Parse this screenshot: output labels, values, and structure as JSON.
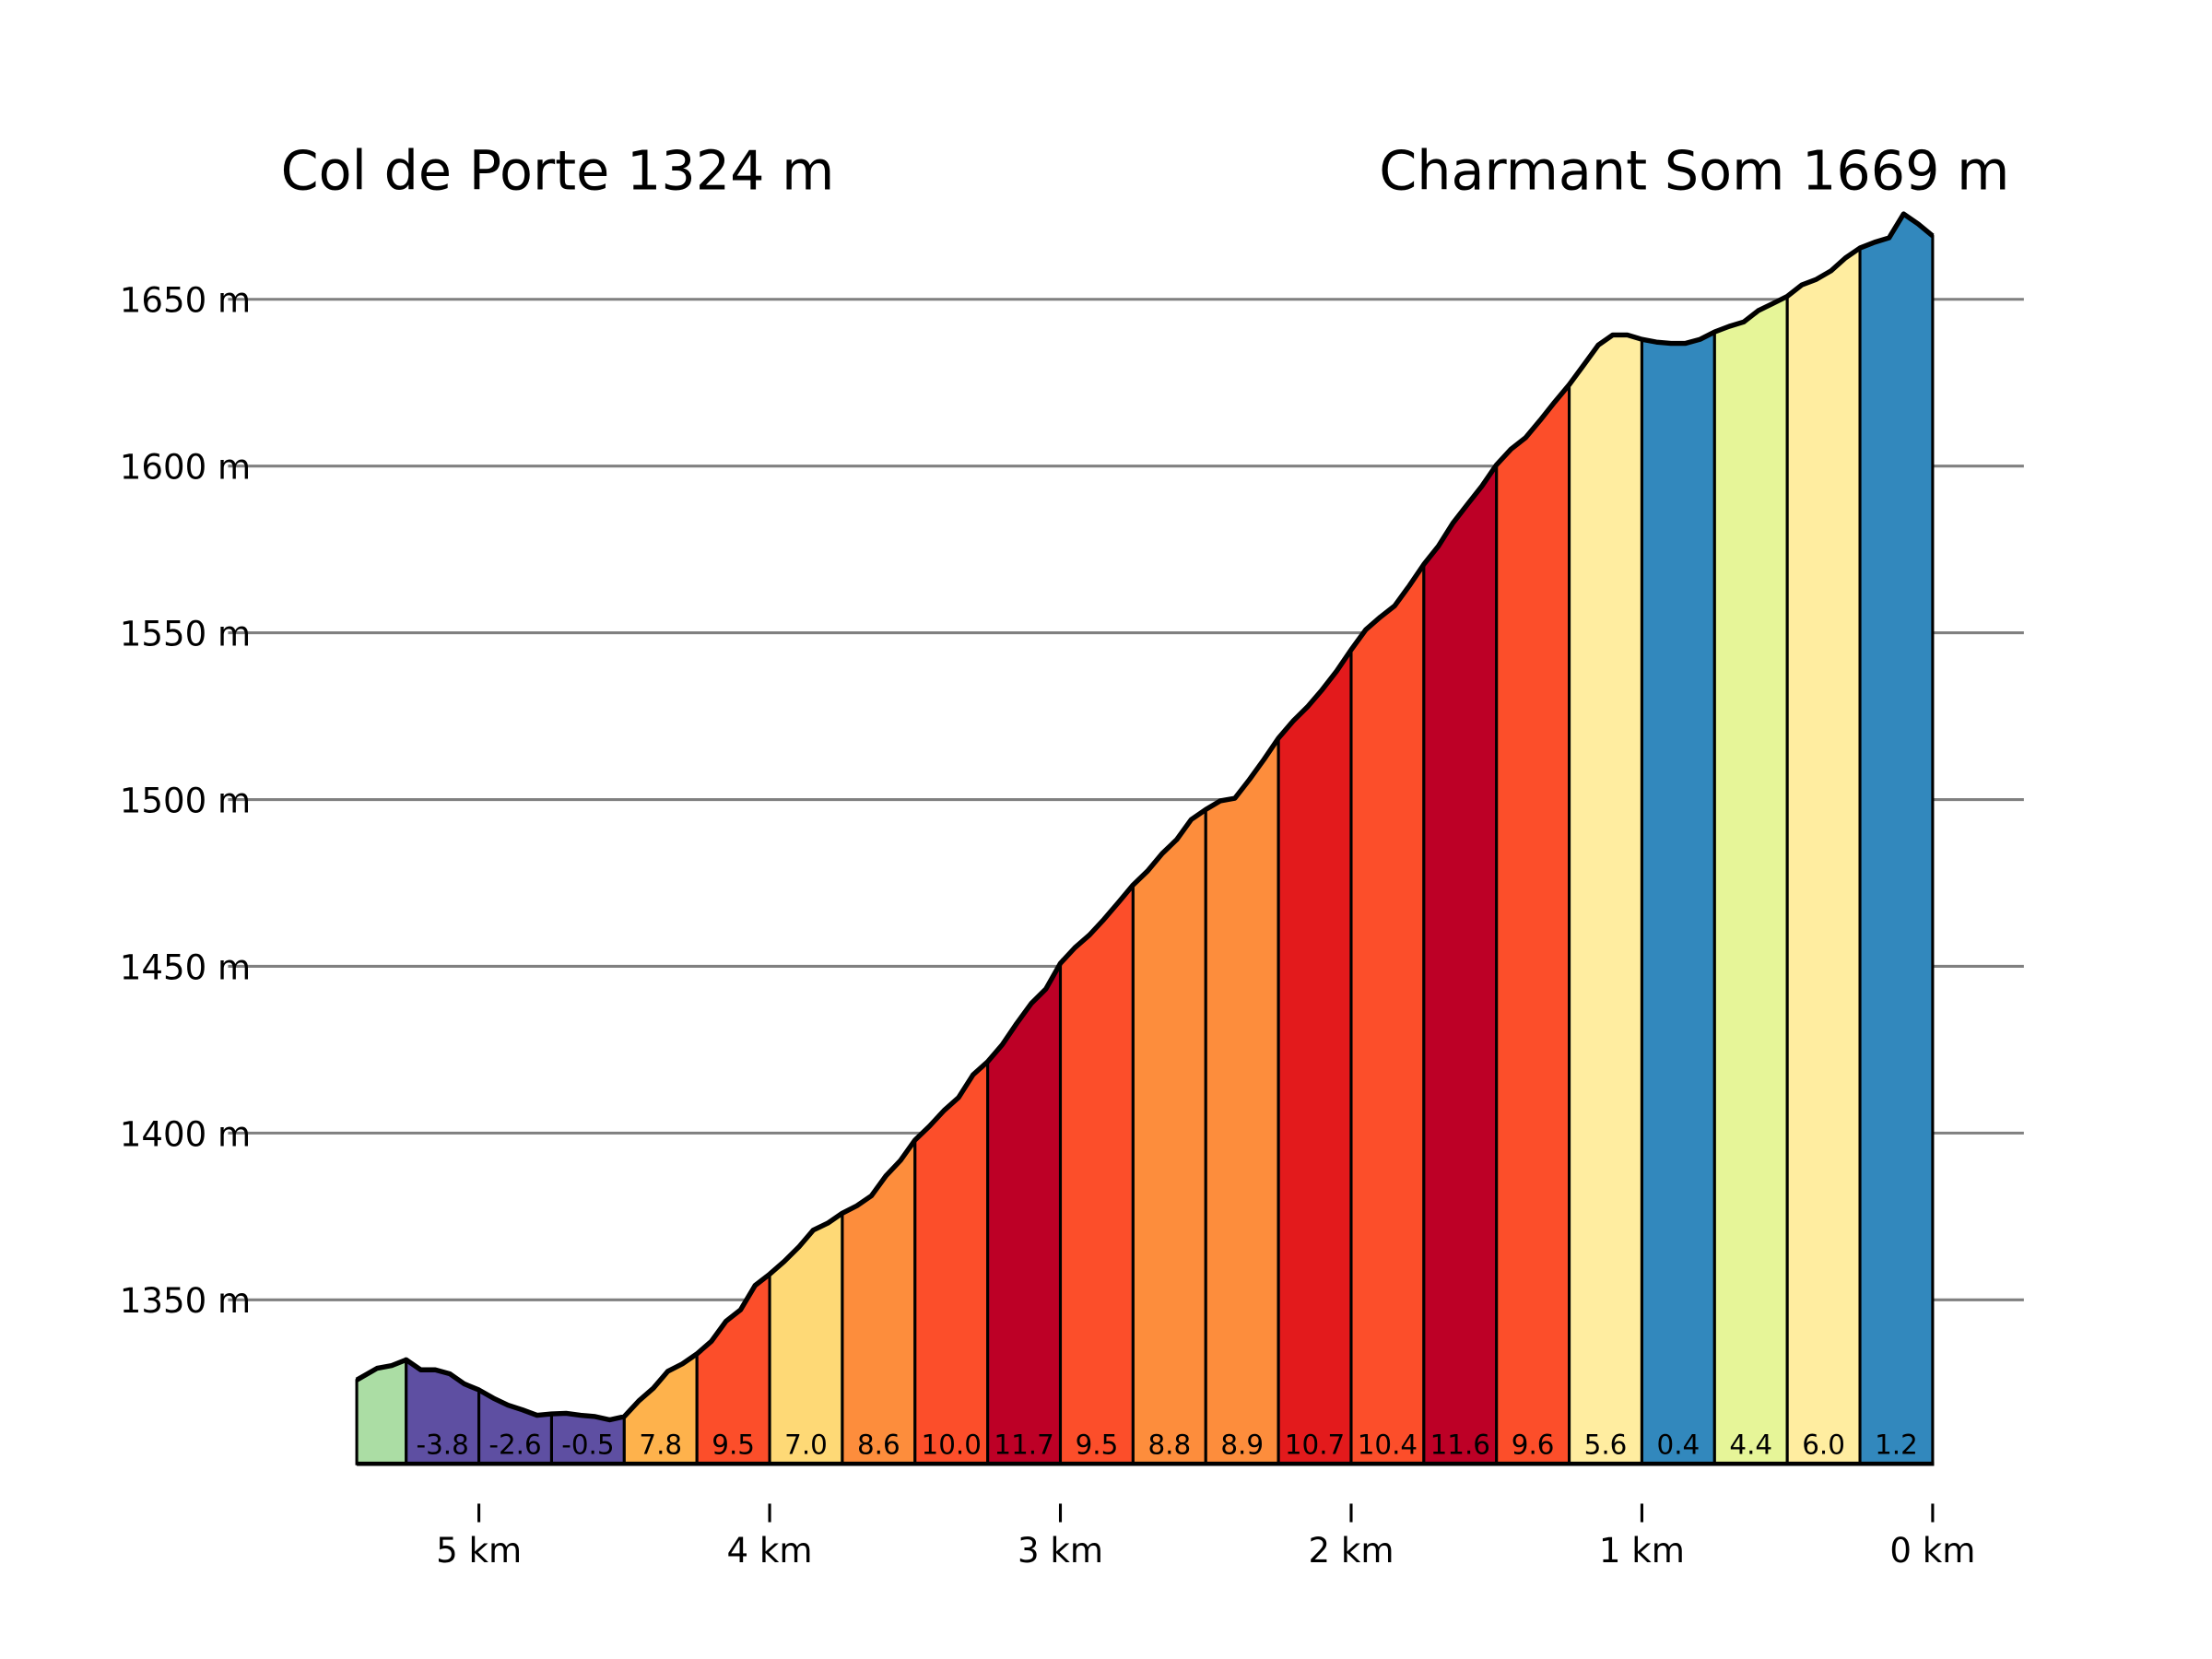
{
  "chart_data": {
    "type": "area",
    "title_left": "Col de Porte 1324 m",
    "title_right": "Charmant Som 1669 m",
    "xlabel": "",
    "ylabel": "",
    "xlim": [
      5.42,
      0
    ],
    "ylim": [
      1301,
      1680
    ],
    "y_ticks": [
      1350,
      1400,
      1450,
      1500,
      1550,
      1600,
      1650
    ],
    "y_tick_labels": [
      "1350 m",
      "1400 m",
      "1450 m",
      "1500 m",
      "1550 m",
      "1600 m",
      "1650 m"
    ],
    "x_ticks": [
      5,
      4,
      3,
      2,
      1,
      0
    ],
    "x_tick_labels": [
      "5 km",
      "4 km",
      "3 km",
      "2 km",
      "1 km",
      "0 km"
    ],
    "grid": "horizontal",
    "profile": {
      "km": [
        5.42,
        5.35,
        5.3,
        5.25,
        5.2,
        5.15,
        5.1,
        5.05,
        5.0,
        4.95,
        4.9,
        4.85,
        4.8,
        4.75,
        4.7,
        4.65,
        4.6,
        4.55,
        4.5,
        4.45,
        4.4,
        4.35,
        4.3,
        4.25,
        4.2,
        4.15,
        4.1,
        4.05,
        4.0,
        3.95,
        3.9,
        3.85,
        3.8,
        3.75,
        3.7,
        3.65,
        3.6,
        3.55,
        3.5,
        3.45,
        3.4,
        3.35,
        3.3,
        3.25,
        3.2,
        3.15,
        3.1,
        3.05,
        3.0,
        2.95,
        2.9,
        2.85,
        2.8,
        2.75,
        2.7,
        2.65,
        2.6,
        2.55,
        2.5,
        2.45,
        2.4,
        2.35,
        2.3,
        2.25,
        2.2,
        2.15,
        2.1,
        2.05,
        2.0,
        1.95,
        1.9,
        1.85,
        1.8,
        1.75,
        1.7,
        1.65,
        1.6,
        1.55,
        1.5,
        1.45,
        1.4,
        1.35,
        1.3,
        1.25,
        1.2,
        1.15,
        1.1,
        1.05,
        1.0,
        0.95,
        0.9,
        0.85,
        0.8,
        0.75,
        0.7,
        0.65,
        0.6,
        0.55,
        0.5,
        0.45,
        0.4,
        0.35,
        0.3,
        0.25,
        0.2,
        0.15,
        0.1,
        0.05,
        0.0
      ],
      "elevation": [
        1326,
        1329.5,
        1330.3,
        1332,
        1329,
        1329,
        1327.8,
        1324.8,
        1323,
        1320.5,
        1318.4,
        1317,
        1315.4,
        1315.8,
        1316,
        1315.4,
        1315,
        1314,
        1315,
        1319.7,
        1323.5,
        1328.6,
        1330.8,
        1333.8,
        1337.6,
        1343.6,
        1347,
        1354.3,
        1357.7,
        1361.5,
        1365.8,
        1370.9,
        1373,
        1376,
        1378.2,
        1381.2,
        1387.2,
        1391.8,
        1397.9,
        1402.1,
        1406.8,
        1410.7,
        1417.5,
        1421.4,
        1426.5,
        1432.9,
        1438.9,
        1443.2,
        1450.9,
        1455.6,
        1459.4,
        1464.1,
        1469.2,
        1474.4,
        1478.6,
        1483.8,
        1488,
        1494,
        1497,
        1499.6,
        1500.4,
        1506,
        1512,
        1518.4,
        1523.5,
        1527.8,
        1532.9,
        1538.5,
        1544.9,
        1550.9,
        1554.7,
        1558.1,
        1564.1,
        1570.5,
        1576,
        1582.9,
        1588.5,
        1594,
        1600.4,
        1605.1,
        1608.5,
        1613.7,
        1619.2,
        1624.4,
        1630.3,
        1636.3,
        1639.3,
        1639.3,
        1638,
        1637.2,
        1636.8,
        1636.8,
        1638,
        1640.2,
        1641.9,
        1643.2,
        1646.6,
        1648.7,
        1650.9,
        1654.3,
        1656,
        1658.5,
        1662.4,
        1665.4,
        1667.1,
        1668.4,
        1675.6,
        1672.6,
        1669
      ]
    },
    "segments": [
      {
        "from": 5.42,
        "to": 5.25,
        "label": "",
        "color": "#abdda4"
      },
      {
        "from": 5.25,
        "to": 5.0,
        "label": "-3.8",
        "color": "#5e4fa2"
      },
      {
        "from": 5.0,
        "to": 4.75,
        "label": "-2.6",
        "color": "#5e4fa2"
      },
      {
        "from": 4.75,
        "to": 4.5,
        "label": "-0.5",
        "color": "#5e4fa2"
      },
      {
        "from": 4.5,
        "to": 4.25,
        "label": "7.8",
        "color": "#feb24c"
      },
      {
        "from": 4.25,
        "to": 4.0,
        "label": "9.5",
        "color": "#fc4e2a"
      },
      {
        "from": 4.0,
        "to": 3.75,
        "label": "7.0",
        "color": "#fed976"
      },
      {
        "from": 3.75,
        "to": 3.5,
        "label": "8.6",
        "color": "#fd8d3c"
      },
      {
        "from": 3.5,
        "to": 3.25,
        "label": "10.0",
        "color": "#fc4e2a"
      },
      {
        "from": 3.25,
        "to": 3.0,
        "label": "11.7",
        "color": "#bd0026"
      },
      {
        "from": 3.0,
        "to": 2.75,
        "label": "9.5",
        "color": "#fc4e2a"
      },
      {
        "from": 2.75,
        "to": 2.5,
        "label": "8.8",
        "color": "#fd8d3c"
      },
      {
        "from": 2.5,
        "to": 2.25,
        "label": "8.9",
        "color": "#fd8d3c"
      },
      {
        "from": 2.25,
        "to": 2.0,
        "label": "10.7",
        "color": "#e31a1c"
      },
      {
        "from": 2.0,
        "to": 1.75,
        "label": "10.4",
        "color": "#fc4e2a"
      },
      {
        "from": 1.75,
        "to": 1.5,
        "label": "11.6",
        "color": "#bd0026"
      },
      {
        "from": 1.5,
        "to": 1.25,
        "label": "9.6",
        "color": "#fc4e2a"
      },
      {
        "from": 1.25,
        "to": 1.0,
        "label": "5.6",
        "color": "#ffeda0"
      },
      {
        "from": 1.0,
        "to": 0.75,
        "label": "0.4",
        "color": "#3288bd"
      },
      {
        "from": 0.75,
        "to": 0.5,
        "label": "4.4",
        "color": "#e6f598"
      },
      {
        "from": 0.5,
        "to": 0.25,
        "label": "6.0",
        "color": "#ffeda0"
      },
      {
        "from": 0.25,
        "to": 0.0,
        "label": "1.2",
        "color": "#3288bd"
      }
    ]
  }
}
